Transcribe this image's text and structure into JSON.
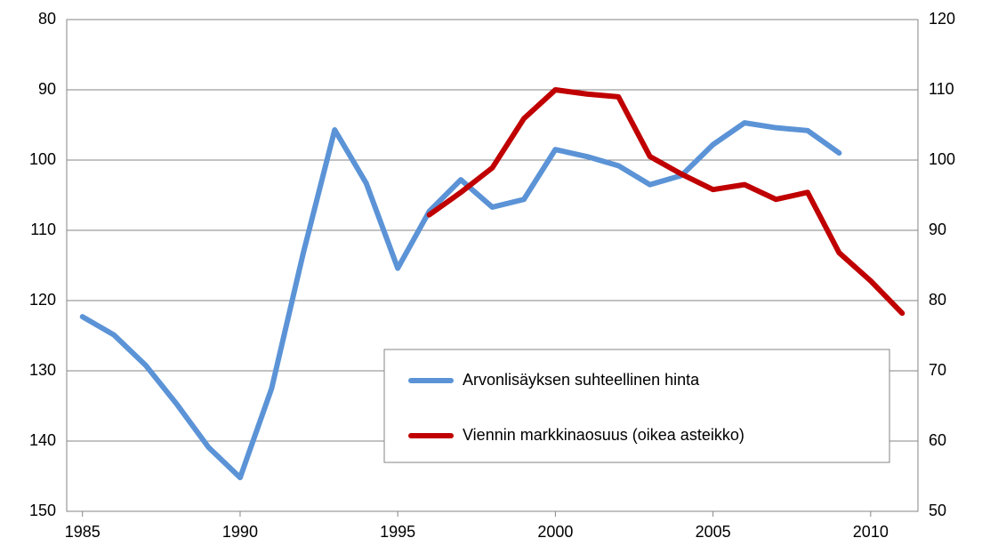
{
  "chart_data": {
    "type": "line",
    "x": [
      1985,
      1986,
      1987,
      1988,
      1989,
      1990,
      1991,
      1992,
      1993,
      1994,
      1995,
      1996,
      1997,
      1998,
      1999,
      2000,
      2001,
      2002,
      2003,
      2004,
      2005,
      2006,
      2007,
      2008,
      2009,
      2010,
      2011
    ],
    "xlim": [
      1984.5,
      2011.5
    ],
    "xticks": [
      1985,
      1990,
      1995,
      2000,
      2005,
      2010
    ],
    "ylim": [
      80,
      150
    ],
    "yinverted": true,
    "yticks": [
      80,
      90,
      100,
      110,
      120,
      130,
      140,
      150
    ],
    "y2lim": [
      50,
      120
    ],
    "y2ticks": [
      50,
      60,
      70,
      80,
      90,
      100,
      110,
      120
    ],
    "grid": true,
    "legend": "lower right",
    "series": [
      {
        "name": "Arvonlisäyksen suhteellinen hinta",
        "color": "#5b93d6",
        "values": [
          122.3,
          124.9,
          129.2,
          134.8,
          140.9,
          145.2,
          132.5,
          113.3,
          95.7,
          103.3,
          115.4,
          107.3,
          102.8,
          106.7,
          105.6,
          98.5,
          99.5,
          100.8,
          103.5,
          102.2,
          97.8,
          94.7,
          95.4,
          95.8,
          99.0,
          null,
          null
        ]
      },
      {
        "name": "Viennin markkinaosuus (oikea asteikko)",
        "color": "#c00000",
        "axis": "y2",
        "values": [
          null,
          null,
          null,
          null,
          null,
          null,
          null,
          null,
          null,
          null,
          null,
          92.2,
          95.4,
          98.9,
          105.9,
          110.0,
          109.4,
          109.0,
          100.5,
          98.0,
          95.8,
          96.5,
          94.4,
          95.4,
          86.8,
          82.8,
          78.2
        ]
      }
    ]
  }
}
